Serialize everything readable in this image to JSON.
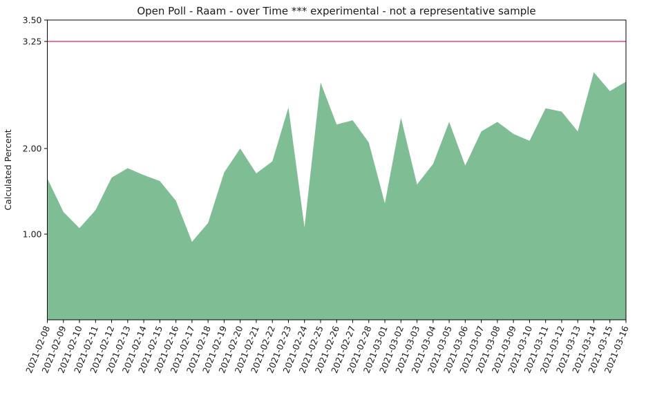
{
  "chart_data": {
    "type": "area",
    "title": "Open Poll - Raam - over Time *** experimental - not a representative sample",
    "xlabel": "",
    "ylabel": "Calculated Percent",
    "x": [
      "2021-02-08",
      "2021-02-09",
      "2021-02-10",
      "2021-02-11",
      "2021-02-12",
      "2021-02-13",
      "2021-02-14",
      "2021-02-15",
      "2021-02-16",
      "2021-02-17",
      "2021-02-18",
      "2021-02-19",
      "2021-02-20",
      "2021-02-21",
      "2021-02-22",
      "2021-02-23",
      "2021-02-24",
      "2021-02-25",
      "2021-02-26",
      "2021-02-27",
      "2021-02-28",
      "2021-03-01",
      "2021-03-02",
      "2021-03-03",
      "2021-03-04",
      "2021-03-05",
      "2021-03-06",
      "2021-03-07",
      "2021-03-08",
      "2021-03-09",
      "2021-03-10",
      "2021-03-11",
      "2021-03-12",
      "2021-03-13",
      "2021-03-14",
      "2021-03-15",
      "2021-03-16"
    ],
    "values": [
      1.65,
      1.26,
      1.07,
      1.28,
      1.66,
      1.77,
      1.69,
      1.62,
      1.39,
      0.91,
      1.13,
      1.72,
      2.0,
      1.71,
      1.85,
      2.48,
      1.08,
      2.77,
      2.28,
      2.33,
      2.07,
      1.36,
      2.36,
      1.58,
      1.82,
      2.31,
      1.8,
      2.2,
      2.31,
      2.17,
      2.09,
      2.47,
      2.43,
      2.2,
      2.89,
      2.67,
      2.78
    ],
    "ylim": [
      0,
      3.5
    ],
    "yticks": [
      1.0,
      2.0,
      3.25,
      3.5
    ],
    "ytick_labels": [
      "1.00",
      "2.00",
      "3.25",
      "3.50"
    ],
    "reference_line": {
      "y": 3.25,
      "label": ""
    },
    "grid": false,
    "legend": "none",
    "x_tick_rotation_deg": 68,
    "colors": {
      "area_fill": "#7fbe94",
      "reference_line": "#ec5f8a",
      "axis": "#000000",
      "background": "#ffffff"
    }
  }
}
